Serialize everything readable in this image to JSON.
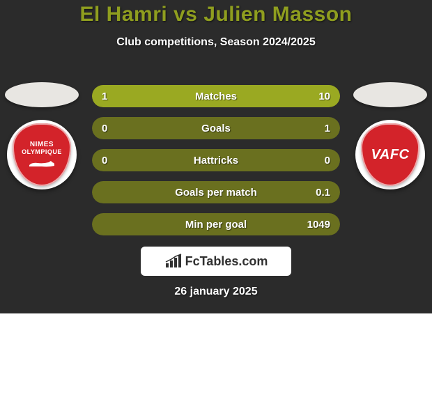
{
  "colors": {
    "card_bg": "#2b2b2b",
    "title_color": "#8f9e1f",
    "text_color": "#ffffff",
    "row_track": "#6a701f",
    "row_fill": "#9aa922",
    "brand_bg": "#ffffff",
    "brand_text": "#303030",
    "country_left": "#e8e6e2",
    "country_right": "#e8e6e2",
    "club_left_badge": "#d3232a",
    "club_right_badge": "#d3232a"
  },
  "header": {
    "title": "El Hamri vs Julien Masson",
    "subtitle": "Club competitions, Season 2024/2025"
  },
  "left_club": {
    "badge_line1": "NIMES",
    "badge_line2": "OLYMPIQUE"
  },
  "right_club": {
    "badge_line1": "VAFC"
  },
  "stats": [
    {
      "label": "Matches",
      "left_text": "1",
      "right_text": "10",
      "left_pct": 9.0,
      "right_pct": 91.0
    },
    {
      "label": "Goals",
      "left_text": "0",
      "right_text": "1",
      "left_pct": 0.0,
      "right_pct": 0.0
    },
    {
      "label": "Hattricks",
      "left_text": "0",
      "right_text": "0",
      "left_pct": 0.0,
      "right_pct": 0.0
    },
    {
      "label": "Goals per match",
      "left_text": "",
      "right_text": "0.1",
      "left_pct": 0.0,
      "right_pct": 0.0
    },
    {
      "label": "Min per goal",
      "left_text": "",
      "right_text": "1049",
      "left_pct": 0.0,
      "right_pct": 0.0
    }
  ],
  "brand": {
    "text": "FcTables.com"
  },
  "date": "26 january 2025"
}
